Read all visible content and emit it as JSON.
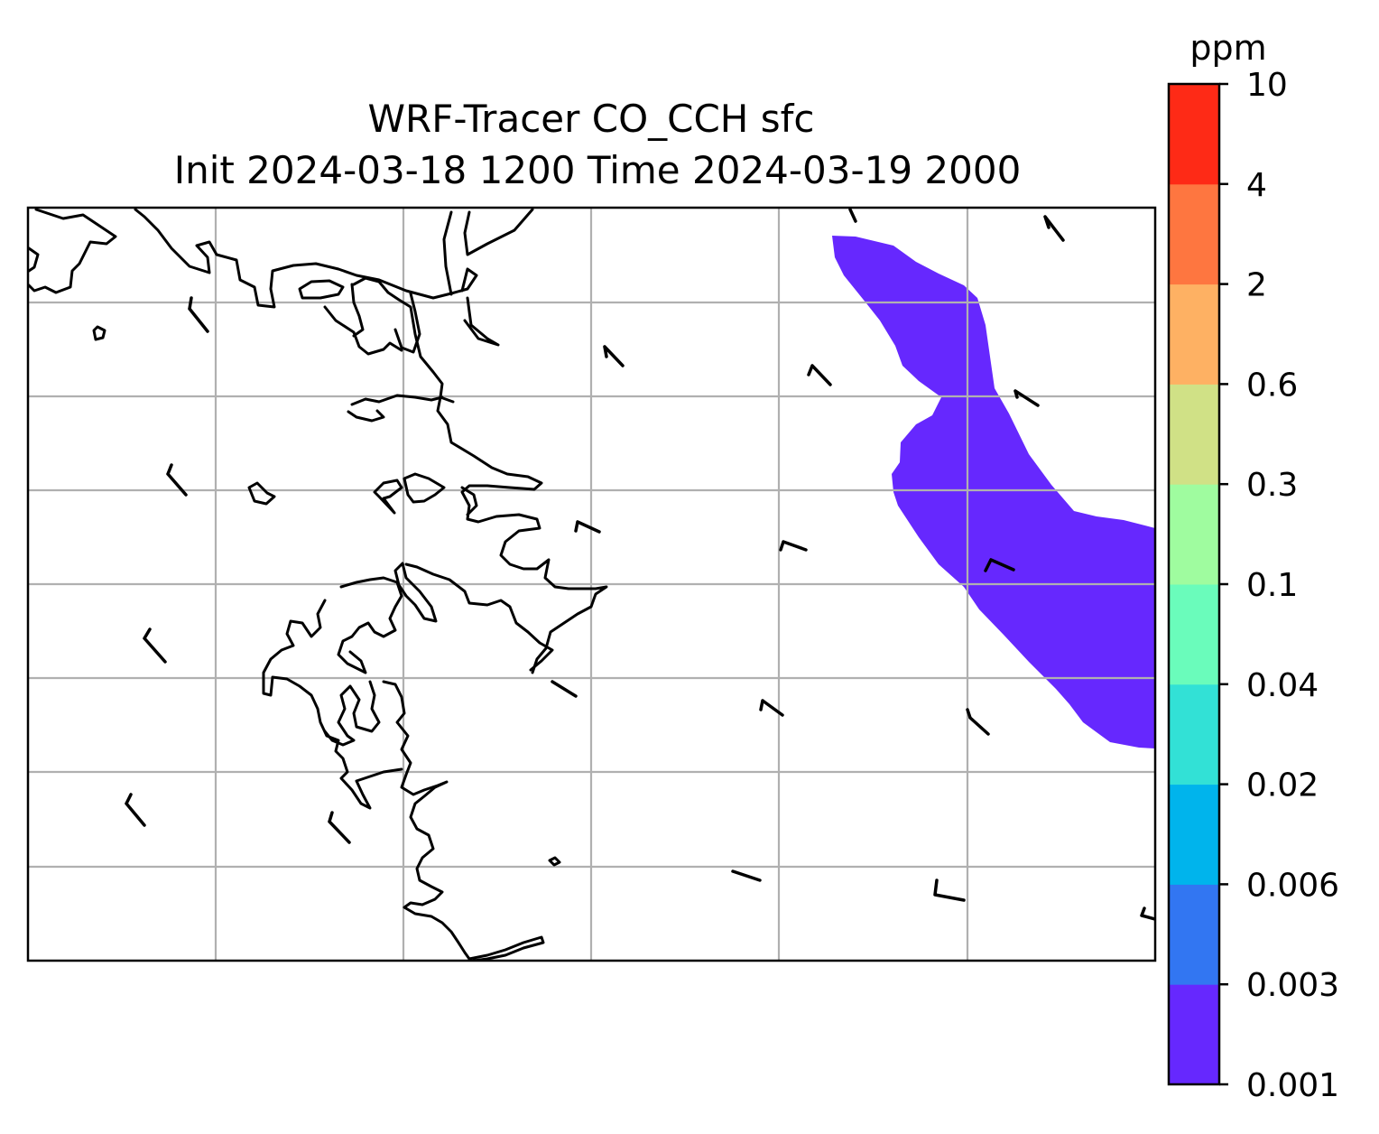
{
  "title": {
    "line1": "WRF-Tracer CO_CCH sfc",
    "line2": "Init 2024-03-18 1200 Time 2024-03-19 2000"
  },
  "colorbar": {
    "unit": "ppm",
    "ticks": [
      "0.001",
      "0.003",
      "0.006",
      "0.02",
      "0.04",
      "0.1",
      "0.3",
      "0.6",
      "2",
      "4",
      "10"
    ],
    "colors": [
      "#6628fe",
      "#3276f2",
      "#00b4ec",
      "#32e1d6",
      "#6afcbb",
      "#9ffc9f",
      "#d0e186",
      "#feb163",
      "#fe7640",
      "#fe2a16"
    ]
  },
  "chart_data": {
    "type": "heatmap",
    "variable": "CO_CCH",
    "level": "sfc",
    "unit": "ppm",
    "init_time": "2024-03-18 1200",
    "valid_time": "2024-03-19 2000",
    "contour_levels": [
      0.001,
      0.003,
      0.006,
      0.02,
      0.04,
      0.1,
      0.3,
      0.6,
      2,
      4,
      10
    ],
    "filled_regions": [
      {
        "level_range": [
          0.001,
          0.003
        ],
        "color": "#6628fe",
        "location": "eastern third of domain, narrow band from north edge widening to southeast"
      }
    ],
    "max_level_present": 0.003,
    "overlays": [
      "coastlines",
      "lat-lon gridlines",
      "wind barbs"
    ],
    "grid": true
  }
}
